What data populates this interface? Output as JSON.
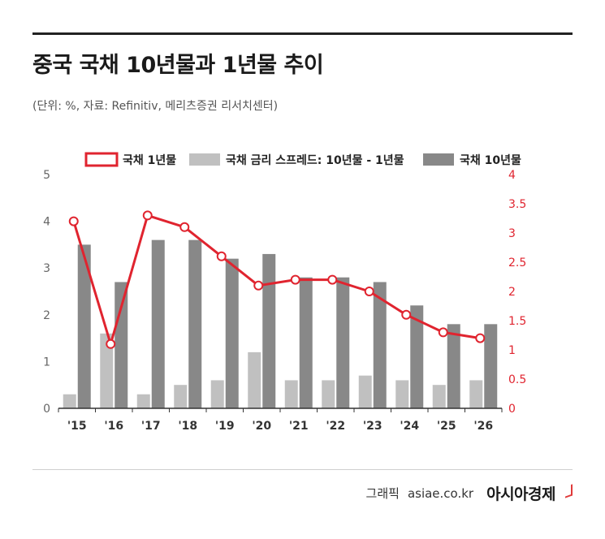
{
  "header": {
    "title": "중국 국채 10년물과 1년물 추이",
    "subtitle": "(단위: %, 자료: Refinitiv, 메리츠증권 리서치센터)"
  },
  "footer": {
    "credit": "그래픽",
    "site": "asiae.co.kr",
    "brand": "아시아경제"
  },
  "colors": {
    "line": "#e0242f",
    "spread_bar": "#c0c0c0",
    "ten_year_bar": "#888888",
    "right_axis_text": "#e0242f"
  },
  "chart_data": {
    "type": "bar+line",
    "categories": [
      "'15",
      "'16",
      "'17",
      "'18",
      "'19",
      "'20",
      "'21",
      "'22",
      "'23",
      "'24",
      "'25",
      "'26"
    ],
    "left_axis": {
      "ylim": [
        0,
        5
      ],
      "ticks": [
        "0",
        "1",
        "2",
        "3",
        "4",
        "5"
      ]
    },
    "right_axis": {
      "ylim": [
        0,
        4
      ],
      "ticks": [
        "0",
        "0.5",
        "1",
        "1.5",
        "2",
        "2.5",
        "3",
        "3.5",
        "4"
      ]
    },
    "series": [
      {
        "name": "국채 1년물",
        "type": "line",
        "axis": "right",
        "values": [
          3.2,
          1.1,
          3.3,
          3.1,
          2.6,
          2.1,
          2.2,
          2.2,
          2.0,
          1.6,
          1.3,
          1.2
        ]
      },
      {
        "name": "국채 금리 스프레드: 10년물 - 1년물",
        "type": "bar",
        "axis": "left",
        "values": [
          0.3,
          1.6,
          0.3,
          0.5,
          0.6,
          1.2,
          0.6,
          0.6,
          0.7,
          0.6,
          0.5,
          0.6
        ]
      },
      {
        "name": "국채 10년물",
        "type": "bar",
        "axis": "left",
        "values": [
          3.5,
          2.7,
          3.6,
          3.6,
          3.2,
          3.3,
          2.8,
          2.8,
          2.7,
          2.2,
          1.8,
          1.8
        ]
      }
    ],
    "legend_position": "top",
    "grid": false
  }
}
